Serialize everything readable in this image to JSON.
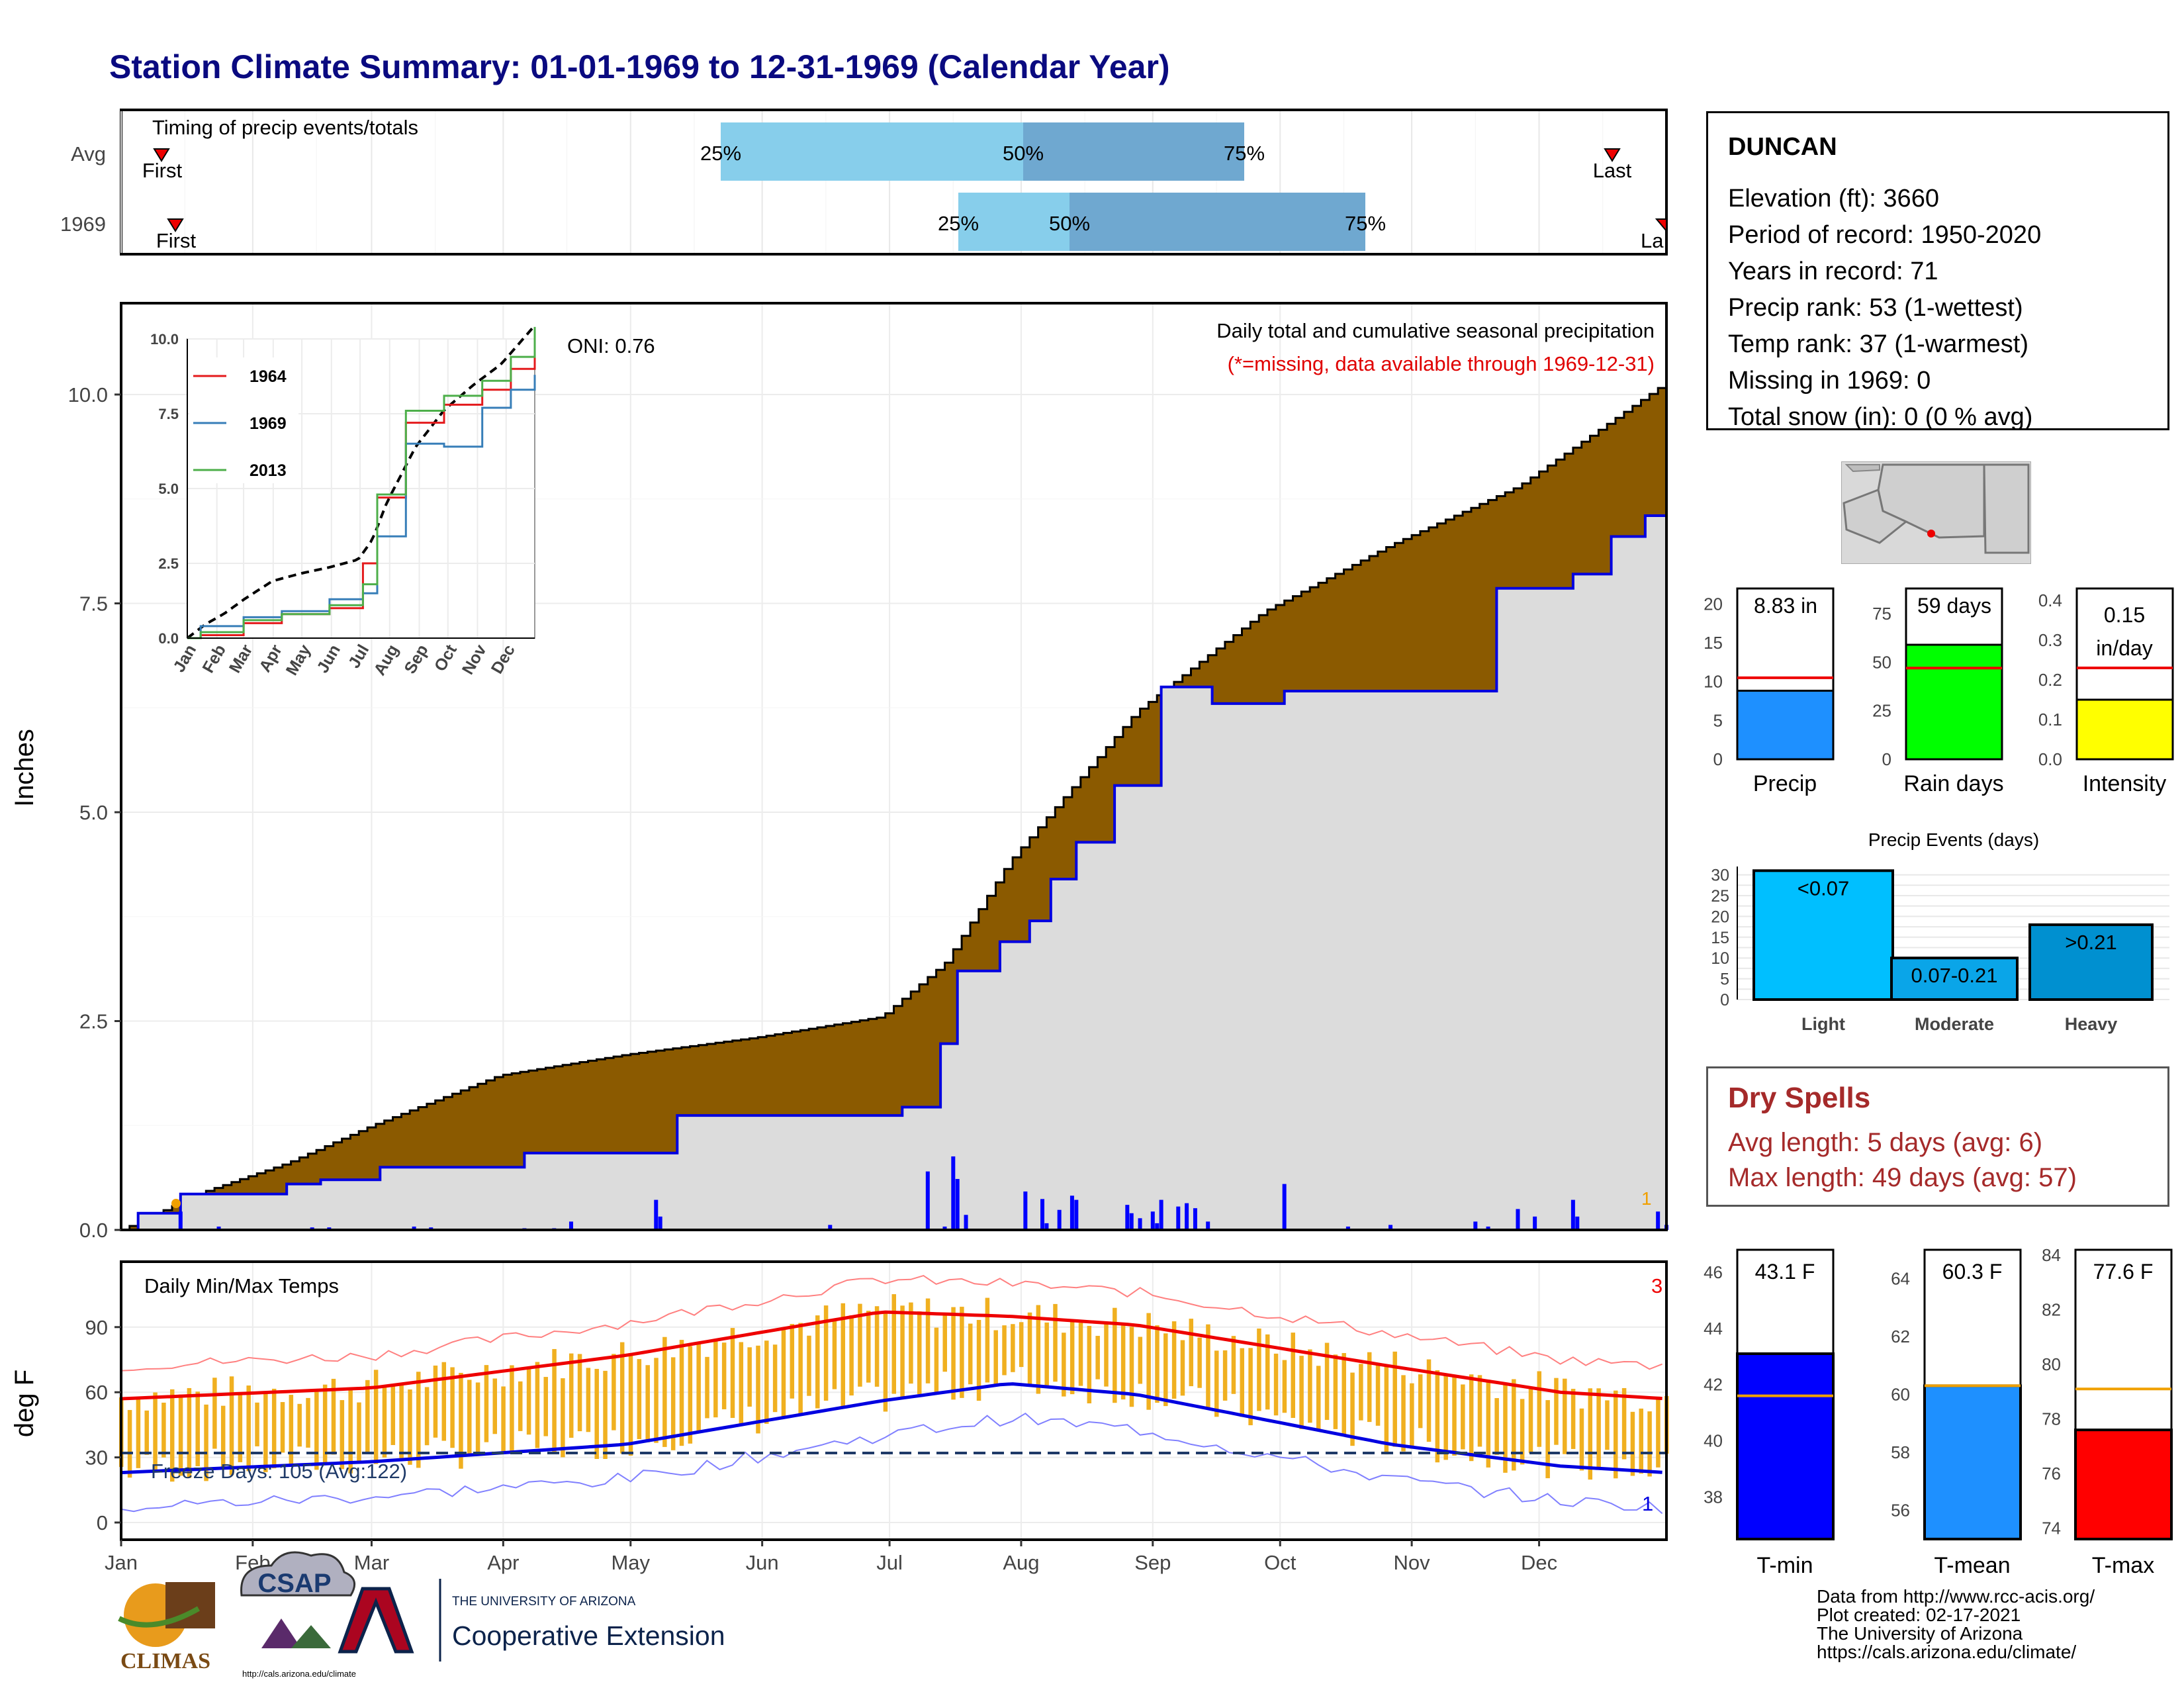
{
  "title": "Station Climate Summary: 01-01-1969 to 12-31-1969 (Calendar Year)",
  "timing": {
    "label": "Timing of precip events/totals",
    "rows": [
      "Avg",
      "1969"
    ],
    "first_label": "First",
    "last_label": "Last",
    "last_label_1969": "La",
    "pct_25": "25%",
    "pct_50": "50%",
    "pct_75": "75%"
  },
  "station": {
    "name": "DUNCAN",
    "lines": [
      "Elevation (ft): 3660",
      "Period of record: 1950-2020",
      "Years in record: 71",
      "Precip rank: 53 (1-wettest)",
      "Temp rank: 37 (1-warmest)",
      "Missing in 1969: 0",
      "Total snow (in): 0 (0 % avg)"
    ]
  },
  "precip_panel": {
    "ylabel": "Inches",
    "yticks": [
      "0.0",
      "2.5",
      "5.0",
      "7.5",
      "10.0"
    ],
    "subtitle": "Daily total and cumulative seasonal precipitation",
    "missing_note": "(*=missing, data available through 1969-12-31)",
    "oni": "ONI: 0.76",
    "corner_count": "1",
    "colors": {
      "cumulative_avg": "#8b5a00",
      "cumulative_year": "#dcdcdc",
      "daily": "#0000ff"
    }
  },
  "inset": {
    "yticks": [
      "0.0",
      "2.5",
      "5.0",
      "7.5",
      "10.0"
    ],
    "months": [
      "Jan",
      "Feb",
      "Mar",
      "Apr",
      "May",
      "Jun",
      "Jul",
      "Aug",
      "Sep",
      "Oct",
      "Nov",
      "Dec"
    ],
    "legend": [
      {
        "name": "1964",
        "color": "#e41a1c"
      },
      {
        "name": "1969",
        "color": "#377eb8"
      },
      {
        "name": "2013",
        "color": "#4daf4a"
      }
    ]
  },
  "temp_panel": {
    "ylabel": "deg F",
    "yticks": [
      "0",
      "30",
      "60",
      "90"
    ],
    "label": "Daily Min/Max Temps",
    "freeze": "Freeze Days: 105 (Avg:122)",
    "top_count": "3",
    "bottom_count": "1"
  },
  "months": [
    "Jan",
    "Feb",
    "Mar",
    "Apr",
    "May",
    "Jun",
    "Jul",
    "Aug",
    "Sep",
    "Oct",
    "Nov",
    "Dec"
  ],
  "precip_bars": {
    "labels": [
      "Precip",
      "Rain days",
      "Intensity"
    ],
    "values": [
      "8.83 in",
      "59 days",
      "0.15"
    ],
    "intensity_unit": "in/day",
    "yticks": [
      [
        "0",
        "5",
        "10",
        "15",
        "20"
      ],
      [
        "0",
        "25",
        "50",
        "75"
      ],
      [
        "0.0",
        "0.1",
        "0.2",
        "0.3",
        "0.4"
      ]
    ]
  },
  "events": {
    "title": "Precip Events (days)",
    "categories": [
      "Light",
      "Moderate",
      "Heavy"
    ],
    "labels": [
      "<0.07",
      "0.07-0.21",
      ">0.21"
    ],
    "yticks": [
      "0",
      "5",
      "10",
      "15",
      "20",
      "25",
      "30"
    ]
  },
  "dry_spells": {
    "title": "Dry Spells",
    "avg": "Avg length: 5 days (avg: 6)",
    "max": "Max length: 49 days (avg: 57)"
  },
  "temp_bars": {
    "labels": [
      "T-min",
      "T-mean",
      "T-max"
    ],
    "values": [
      "43.1 F",
      "60.3 F",
      "77.6 F"
    ],
    "yticks": [
      [
        "38",
        "40",
        "42",
        "44",
        "46"
      ],
      [
        "56",
        "58",
        "60",
        "62",
        "64"
      ],
      [
        "74",
        "76",
        "78",
        "80",
        "82",
        "84"
      ]
    ]
  },
  "credits": [
    "Data from http://www.rcc-acis.org/",
    "Plot created: 02-17-2021",
    "The University of Arizona",
    "https://cals.arizona.edu/climate/"
  ],
  "logos": {
    "climas": "CLIMAS",
    "csap": "CSAP",
    "csap_url": "http://cals.arizona.edu/climate",
    "ua_small": "THE UNIVERSITY OF ARIZONA",
    "ua_big": "Cooperative Extension",
    "ua_letter": "A"
  },
  "chart_data": [
    {
      "type": "area",
      "title": "Daily total and cumulative seasonal precipitation",
      "ylabel": "Inches",
      "ylim": [
        0,
        11
      ],
      "x_unit": "day of year",
      "series": [
        {
          "name": "1969",
          "x": [
            1,
            5,
            12,
            15,
            40,
            48,
            62,
            96,
            132,
            185,
            194,
            198,
            208,
            215,
            220,
            226,
            235,
            246,
            258,
            275,
            325,
            343,
            352,
            360,
            365
          ],
          "values": [
            0,
            0.2,
            0.2,
            0.43,
            0.55,
            0.6,
            0.75,
            0.92,
            1.37,
            1.47,
            2.23,
            3.1,
            3.45,
            3.7,
            4.2,
            4.64,
            5.32,
            6.5,
            6.3,
            6.45,
            7.68,
            7.85,
            8.3,
            8.55,
            8.83
          ]
        }
      ],
      "daily": [
        {
          "x": 15,
          "value": 0.22
        },
        {
          "x": 24,
          "value": 0.04
        },
        {
          "x": 46,
          "value": 0.03
        },
        {
          "x": 50,
          "value": 0.03
        },
        {
          "x": 70,
          "value": 0.04
        },
        {
          "x": 74,
          "value": 0.03
        },
        {
          "x": 96,
          "value": 0.02
        },
        {
          "x": 103,
          "value": 0.02
        },
        {
          "x": 107,
          "value": 0.1
        },
        {
          "x": 127,
          "value": 0.36
        },
        {
          "x": 128,
          "value": 0.16
        },
        {
          "x": 168,
          "value": 0.06
        },
        {
          "x": 191,
          "value": 0.7
        },
        {
          "x": 195,
          "value": 0.04
        },
        {
          "x": 197,
          "value": 0.88
        },
        {
          "x": 198,
          "value": 0.61
        },
        {
          "x": 200,
          "value": 0.18
        },
        {
          "x": 214,
          "value": 0.46
        },
        {
          "x": 218,
          "value": 0.37
        },
        {
          "x": 219,
          "value": 0.08
        },
        {
          "x": 222,
          "value": 0.24
        },
        {
          "x": 225,
          "value": 0.41
        },
        {
          "x": 226,
          "value": 0.36
        },
        {
          "x": 238,
          "value": 0.3
        },
        {
          "x": 239,
          "value": 0.2
        },
        {
          "x": 241,
          "value": 0.14
        },
        {
          "x": 244,
          "value": 0.22
        },
        {
          "x": 245,
          "value": 0.08
        },
        {
          "x": 246,
          "value": 0.36
        },
        {
          "x": 250,
          "value": 0.28
        },
        {
          "x": 252,
          "value": 0.32
        },
        {
          "x": 254,
          "value": 0.26
        },
        {
          "x": 257,
          "value": 0.1
        },
        {
          "x": 275,
          "value": 0.55
        },
        {
          "x": 290,
          "value": 0.04
        },
        {
          "x": 300,
          "value": 0.06
        },
        {
          "x": 320,
          "value": 0.1
        },
        {
          "x": 323,
          "value": 0.04
        },
        {
          "x": 330,
          "value": 0.25
        },
        {
          "x": 334,
          "value": 0.16
        },
        {
          "x": 343,
          "value": 0.36
        },
        {
          "x": 344,
          "value": 0.16
        },
        {
          "x": 363,
          "value": 0.22
        },
        {
          "x": 365,
          "value": 0.06
        }
      ],
      "avg_cumulative_end": 10.15
    },
    {
      "type": "line",
      "title": "",
      "ylim": [
        0,
        10
      ],
      "series": [
        {
          "name": "1964",
          "x": [
            1,
            15,
            60,
            100,
            150,
            185,
            200,
            230,
            270,
            310,
            340,
            365
          ],
          "values": [
            0,
            0.1,
            0.5,
            0.8,
            1.0,
            2.5,
            4.7,
            7.2,
            7.8,
            8.3,
            9.0,
            10.2
          ]
        },
        {
          "name": "1969",
          "x": [
            1,
            15,
            60,
            100,
            150,
            185,
            200,
            230,
            270,
            310,
            340,
            365
          ],
          "values": [
            0,
            0.4,
            0.7,
            0.9,
            1.3,
            1.5,
            3.4,
            6.5,
            6.4,
            7.7,
            8.3,
            8.8
          ]
        },
        {
          "name": "2013",
          "x": [
            1,
            15,
            60,
            100,
            150,
            185,
            200,
            230,
            270,
            310,
            340,
            365
          ],
          "values": [
            0,
            0.2,
            0.6,
            0.8,
            1.1,
            1.8,
            4.8,
            7.6,
            8.1,
            8.6,
            9.4,
            10.4
          ]
        }
      ]
    },
    {
      "type": "bar",
      "title": "Daily Min/Max Temps",
      "ylabel": "deg F",
      "ylim": [
        -5,
        115
      ],
      "avg_max": {
        "x": [
          1,
          60,
          120,
          180,
          210,
          240,
          300,
          340,
          365
        ],
        "values": [
          57,
          62,
          77,
          97,
          95,
          91,
          72,
          60,
          57
        ]
      },
      "avg_min": {
        "x": [
          1,
          60,
          120,
          180,
          210,
          240,
          300,
          340,
          365
        ],
        "values": [
          23,
          28,
          36,
          56,
          64,
          59,
          36,
          26,
          23
        ]
      },
      "freeze_threshold": 32
    },
    {
      "type": "bar",
      "categories": [
        "Precip",
        "Rain days",
        "Intensity"
      ],
      "values": [
        8.83,
        59,
        0.15
      ],
      "averages": [
        10.5,
        47,
        0.23
      ],
      "colors": [
        "#1e90ff",
        "#00ff00",
        "#ffff00"
      ]
    },
    {
      "type": "bar",
      "title": "Precip Events (days)",
      "categories": [
        "Light",
        "Moderate",
        "Heavy"
      ],
      "values": [
        31,
        10,
        18
      ],
      "colors": [
        "#00bfff",
        "#0aa5e8",
        "#0090d0"
      ],
      "ylim": [
        0,
        32
      ]
    },
    {
      "type": "bar",
      "categories": [
        "T-min",
        "T-mean",
        "T-max"
      ],
      "values": [
        43.1,
        60.3,
        77.6
      ],
      "averages": [
        41.6,
        60.3,
        79.1
      ],
      "colors": [
        "#0000ff",
        "#1e90ff",
        "#ff0000"
      ]
    }
  ]
}
